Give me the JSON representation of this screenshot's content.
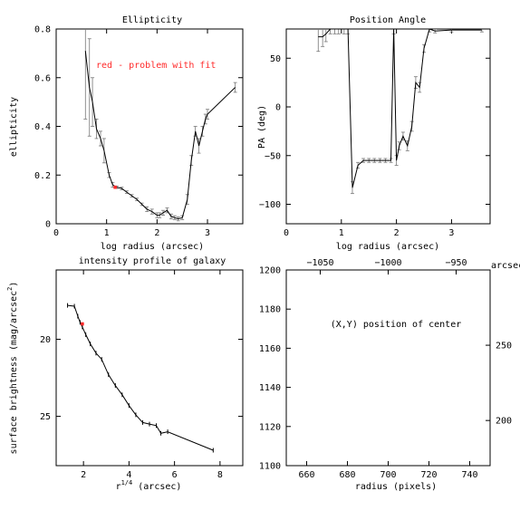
{
  "colors": {
    "problem": "#ff2a2a",
    "line": "#000000",
    "errorbar": "#777777"
  },
  "chart_data": [
    {
      "id": "ellipticity",
      "type": "line",
      "title": "Ellipticity",
      "xlabel": "log radius (arcsec)",
      "ylabel": "ellipticity",
      "xlim": [
        0,
        3.7
      ],
      "ylim": [
        0,
        0.8
      ],
      "xticks": [
        0,
        1,
        2,
        3
      ],
      "yticks": [
        0,
        0.2,
        0.4,
        0.6,
        0.8
      ],
      "annotation": "red - problem with fit",
      "x": [
        0.58,
        0.66,
        0.72,
        0.8,
        0.88,
        0.95,
        1.05,
        1.12,
        1.2,
        1.3,
        1.4,
        1.5,
        1.6,
        1.7,
        1.8,
        1.9,
        2.0,
        2.05,
        2.12,
        2.2,
        2.28,
        2.35,
        2.42,
        2.5,
        2.6,
        2.68,
        2.76,
        2.83,
        2.9,
        2.96,
        3.0,
        3.55
      ],
      "y": [
        0.71,
        0.56,
        0.5,
        0.39,
        0.35,
        0.3,
        0.2,
        0.16,
        0.15,
        0.145,
        0.13,
        0.115,
        0.1,
        0.08,
        0.06,
        0.05,
        0.035,
        0.035,
        0.045,
        0.055,
        0.03,
        0.025,
        0.02,
        0.025,
        0.1,
        0.26,
        0.38,
        0.32,
        0.38,
        0.43,
        0.45,
        0.56
      ],
      "yerr": [
        0.28,
        0.2,
        0.1,
        0.04,
        0.03,
        0.05,
        0.01,
        0.01,
        0.005,
        0.005,
        0.005,
        0.005,
        0.005,
        0.005,
        0.01,
        0.01,
        0.01,
        0.01,
        0.01,
        0.01,
        0.01,
        0.008,
        0.008,
        0.008,
        0.02,
        0.02,
        0.02,
        0.03,
        0.02,
        0.02,
        0.02,
        0.02
      ],
      "problem_points": [
        {
          "x": 1.17,
          "y": 0.15
        }
      ]
    },
    {
      "id": "position-angle",
      "type": "line",
      "title": "Position Angle",
      "xlabel": "log radius (arcsec)",
      "ylabel": "PA (deg)",
      "xlim": [
        0,
        3.7
      ],
      "ylim": [
        -120,
        80
      ],
      "xticks": [
        0,
        1,
        2,
        3
      ],
      "yticks": [
        -100,
        -50,
        0,
        50
      ],
      "x": [
        0.58,
        0.66,
        0.72,
        0.8,
        0.88,
        0.95,
        1.05,
        1.12,
        1.2,
        1.3,
        1.4,
        1.5,
        1.6,
        1.7,
        1.8,
        1.9,
        1.95,
        2.0,
        2.05,
        2.12,
        2.2,
        2.28,
        2.35,
        2.42,
        2.5,
        2.6,
        2.7,
        3.0,
        3.55
      ],
      "y": [
        72,
        72,
        75,
        80,
        80,
        80,
        80,
        80,
        -83,
        -60,
        -55,
        -55,
        -55,
        -55,
        -55,
        -55,
        80,
        -55,
        -40,
        -30,
        -40,
        -20,
        25,
        20,
        60,
        80,
        78,
        79,
        79
      ],
      "yerr": [
        15,
        10,
        8,
        5,
        5,
        5,
        5,
        5,
        6,
        3,
        2,
        2,
        2,
        2,
        2,
        2,
        5,
        5,
        4,
        4,
        5,
        5,
        6,
        5,
        4,
        3,
        2,
        2,
        2
      ]
    },
    {
      "id": "intensity-profile",
      "type": "line",
      "title": "intensity profile of galaxy",
      "xlabel": "r",
      "xlabel_sup": "1/4",
      "xlabel_tail": " (arcsec)",
      "ylabel": "surface brightness (mag/arcsec",
      "ylabel_sup": "2",
      "ylabel_tail": ")",
      "xlim": [
        0.8,
        9
      ],
      "ylim": [
        28.2,
        15.5
      ],
      "y_inverted": true,
      "xticks": [
        2,
        4,
        6,
        8
      ],
      "yticks": [
        20,
        25
      ],
      "x": [
        1.3,
        1.6,
        1.75,
        1.85,
        1.95,
        2.1,
        2.3,
        2.55,
        2.8,
        3.1,
        3.4,
        3.7,
        4.0,
        4.3,
        4.6,
        4.9,
        5.2,
        5.4,
        5.7,
        7.7
      ],
      "y": [
        17.8,
        17.85,
        18.5,
        18.9,
        19.2,
        19.7,
        20.3,
        20.9,
        21.3,
        22.3,
        23.0,
        23.6,
        24.3,
        24.9,
        25.4,
        25.5,
        25.6,
        26.1,
        26.0,
        27.2
      ],
      "problem_points": [
        {
          "x": 1.95,
          "y": 19.0
        }
      ]
    },
    {
      "id": "center-position",
      "type": "scatter",
      "title": "(X,Y) position of center",
      "xlabel": "radius (pixels)",
      "toplabel": "arcsec",
      "xlim": [
        650,
        750
      ],
      "ylim": [
        1100,
        1200
      ],
      "xticks": [
        660,
        680,
        700,
        720,
        740
      ],
      "yticks": [
        1100,
        1120,
        1140,
        1160,
        1180,
        1200
      ],
      "top_xlim": [
        -1075,
        -925
      ],
      "top_xticks": [
        -1050,
        -1000,
        -950
      ],
      "right_ylim": [
        170,
        300
      ],
      "right_yticks": [
        200,
        250
      ],
      "x": [],
      "y": []
    }
  ]
}
